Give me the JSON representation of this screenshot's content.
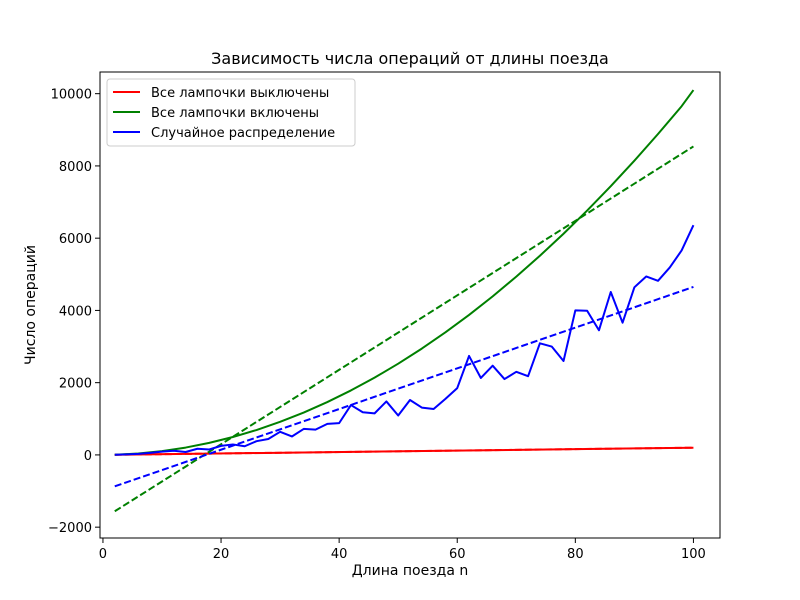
{
  "chart_data": {
    "type": "line",
    "title": "Зависимость числа операций от длины поезда",
    "xlabel": "Длина поезда n",
    "ylabel": "Число операций",
    "xlim": [
      -0.5,
      104.5
    ],
    "ylim": [
      -2300,
      10600
    ],
    "xticks": [
      0,
      20,
      40,
      60,
      80,
      100
    ],
    "yticks": [
      -2000,
      0,
      2000,
      4000,
      6000,
      8000,
      10000
    ],
    "xtick_labels": [
      "0",
      "20",
      "40",
      "60",
      "80",
      "100"
    ],
    "ytick_labels": [
      "−2000",
      "0",
      "2000",
      "4000",
      "6000",
      "8000",
      "10000"
    ],
    "grid": false,
    "legend_position": "top-left",
    "series": [
      {
        "name": "Все лампочки выключены",
        "color": "#ff0000",
        "style": "solid",
        "x": [
          2,
          100
        ],
        "y": [
          4,
          200
        ]
      },
      {
        "color": "#ff0000",
        "style": "dashed",
        "x": [
          2,
          100
        ],
        "y": [
          4,
          200
        ]
      },
      {
        "name": "Все лампочки включены",
        "color": "#008000",
        "style": "solid",
        "x": [
          2,
          6,
          10,
          14,
          18,
          22,
          26,
          30,
          34,
          38,
          42,
          46,
          50,
          54,
          58,
          62,
          66,
          70,
          74,
          78,
          82,
          86,
          90,
          94,
          98,
          100
        ],
        "y": [
          5,
          39,
          105,
          203,
          333,
          495,
          689,
          915,
          1173,
          1463,
          1785,
          2139,
          2525,
          2943,
          3393,
          3875,
          4389,
          4935,
          5513,
          6123,
          6765,
          7439,
          8145,
          8883,
          9653,
          10100
        ]
      },
      {
        "color": "#008000",
        "style": "dashed",
        "x": [
          2,
          100
        ],
        "y": [
          -1560,
          8540
        ]
      },
      {
        "name": "Случайное распределение",
        "color": "#0000ff",
        "style": "solid",
        "x": [
          2,
          4,
          6,
          8,
          10,
          12,
          14,
          16,
          18,
          20,
          22,
          24,
          26,
          28,
          30,
          32,
          34,
          36,
          38,
          40,
          42,
          44,
          46,
          48,
          50,
          52,
          54,
          56,
          58,
          60,
          62,
          64,
          66,
          68,
          70,
          72,
          74,
          76,
          78,
          80,
          82,
          84,
          86,
          88,
          90,
          92,
          94,
          96,
          98,
          100
        ],
        "y": [
          5,
          15,
          30,
          55,
          90,
          115,
          80,
          170,
          150,
          250,
          290,
          240,
          380,
          440,
          640,
          510,
          720,
          700,
          860,
          880,
          1380,
          1180,
          1150,
          1480,
          1090,
          1520,
          1310,
          1270,
          1550,
          1850,
          2740,
          2130,
          2470,
          2100,
          2300,
          2180,
          3090,
          3000,
          2600,
          4000,
          3990,
          3450,
          4510,
          3660,
          4640,
          4940,
          4820,
          5190,
          5660,
          6360
        ]
      },
      {
        "color": "#0000ff",
        "style": "dashed",
        "x": [
          2,
          100
        ],
        "y": [
          -870,
          4650
        ]
      }
    ]
  }
}
